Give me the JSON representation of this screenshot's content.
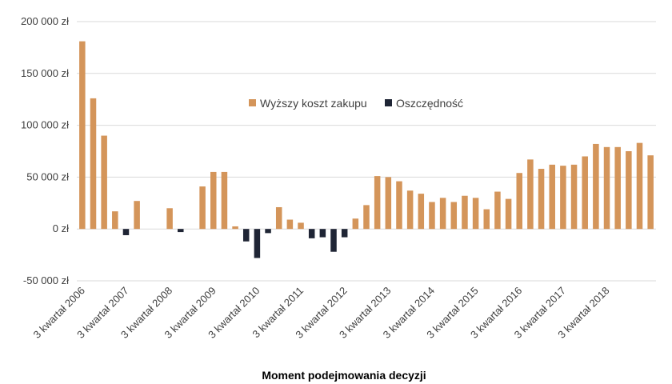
{
  "chart_data": {
    "type": "bar",
    "title": "",
    "xlabel": "Moment podejmowania decyzji",
    "ylabel": "",
    "ylim": [
      -50000,
      200000
    ],
    "yticks": [
      200000,
      150000,
      100000,
      50000,
      0,
      -50000
    ],
    "ytick_labels": [
      "200 000 zł",
      "150 000 zł",
      "100 000 zł",
      "50 000 zł",
      "0 zł",
      "-50 000 zł"
    ],
    "grid": true,
    "legend_position": "center",
    "category_labels": [
      "3 kwartał 2006",
      "3 kwartał 2007",
      "3 kwartał 2008",
      "3 kwartał 2009",
      "3 kwartał 2010",
      "3 kwartał 2011",
      "3 kwartał 2012",
      "3 kwartał 2013",
      "3 kwartał 2014",
      "3 kwartał 2015",
      "3 kwartał 2016",
      "3 kwartał 2017",
      "3 kwartał 2018"
    ],
    "label_indices": [
      0,
      4,
      8,
      12,
      16,
      20,
      24,
      28,
      32,
      36,
      40,
      44,
      48
    ],
    "series": [
      {
        "name": "Wyższy koszt zakupu",
        "color": "#d4955a",
        "values": [
          181000,
          126000,
          90000,
          17000,
          0,
          27000,
          0,
          0,
          20000,
          0,
          0,
          41000,
          55000,
          55000,
          2500,
          0,
          0,
          0,
          21000,
          9000,
          6000,
          0,
          0,
          0,
          0,
          10000,
          23000,
          51000,
          50000,
          46000,
          37000,
          34000,
          26000,
          30000,
          26000,
          32000,
          30000,
          19000,
          36000,
          29000,
          54000,
          67000,
          58000,
          62000,
          61000,
          62000,
          70000,
          82000,
          79000,
          79000,
          75000,
          83000,
          71000
        ]
      },
      {
        "name": "Oszczędność",
        "color": "#1f2535",
        "values": [
          0,
          0,
          0,
          0,
          -6000,
          0,
          0,
          0,
          0,
          -3000,
          0,
          0,
          0,
          0,
          0,
          -12000,
          -28000,
          -4000,
          0,
          0,
          0,
          -9000,
          -8000,
          -22000,
          -8000,
          0,
          0,
          0,
          0,
          0,
          0,
          0,
          0,
          0,
          0,
          0,
          0,
          0,
          0,
          0,
          0,
          0,
          0,
          0,
          0,
          0,
          0,
          0,
          0,
          0,
          0,
          0,
          0
        ]
      }
    ]
  }
}
